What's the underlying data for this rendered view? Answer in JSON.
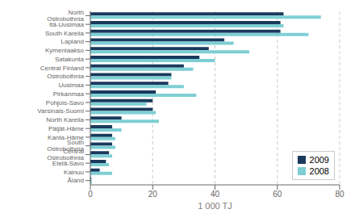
{
  "chart_data": {
    "type": "bar",
    "orientation": "horizontal",
    "categories": [
      "North Ostrobothnia",
      "Itä-Uusimaa",
      "South Karelia",
      "Lapland",
      "Kymenlaakso",
      "Satakunta",
      "Central Finland",
      "Ostrobothnia",
      "Uusimaa",
      "Pirkanmaa",
      "Pohjois-Savo",
      "Varsinais-Suomi",
      "North Karelia",
      "Päijät-Häme",
      "Kanta-Häme",
      "South Ostrobothnia",
      "Central Ostrobothnia",
      "Etelä-Savo",
      "Kainuu",
      "Åland"
    ],
    "series": [
      {
        "name": "2009",
        "color": "#1a3a5c",
        "values": [
          62,
          61,
          61,
          43,
          38,
          35,
          30,
          26,
          25,
          21,
          20,
          20,
          10,
          7,
          7,
          7,
          6,
          5,
          3,
          0.3
        ]
      },
      {
        "name": "2008",
        "color": "#7ecfd4",
        "values": [
          74,
          62,
          70,
          46,
          51,
          40,
          33,
          26,
          30,
          34,
          18,
          21,
          22,
          10,
          8,
          8,
          7,
          6,
          7,
          0.5
        ]
      }
    ],
    "xlabel": "1 000 TJ",
    "xlim": [
      0,
      80
    ],
    "xticks": [
      0,
      20,
      40,
      60,
      80
    ],
    "grid": true,
    "legend": "lower right"
  }
}
